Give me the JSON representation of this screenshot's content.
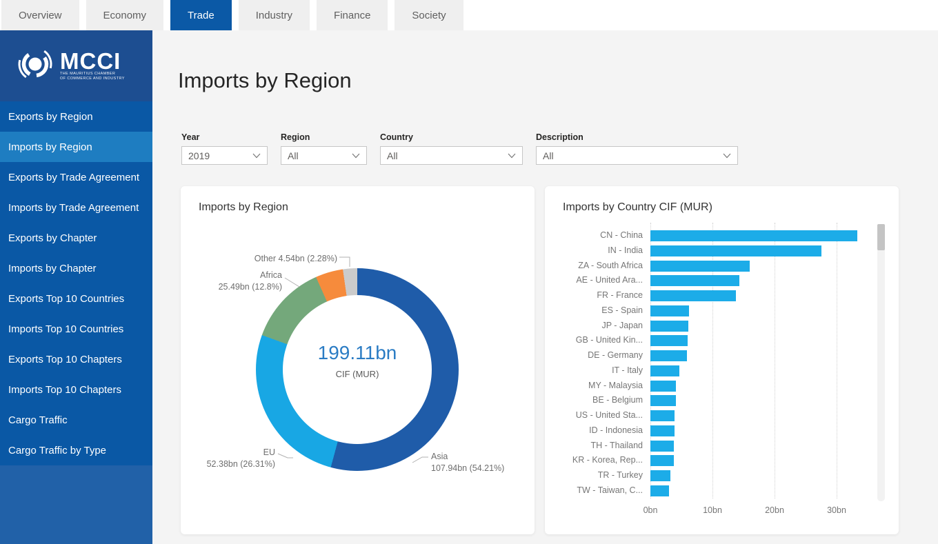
{
  "tabs": [
    {
      "label": "Overview",
      "active": false
    },
    {
      "label": "Economy",
      "active": false
    },
    {
      "label": "Trade",
      "active": true
    },
    {
      "label": "Industry",
      "active": false
    },
    {
      "label": "Finance",
      "active": false
    },
    {
      "label": "Society",
      "active": false
    }
  ],
  "sidebar": {
    "logo": {
      "title": "MCCI",
      "subtitle_line1": "THE MAURITIUS CHAMBER",
      "subtitle_line2": "OF COMMERCE AND INDUSTRY"
    },
    "items": [
      {
        "label": "Exports by Region",
        "active": false
      },
      {
        "label": "Imports by Region",
        "active": true
      },
      {
        "label": "Exports by Trade Agreement",
        "active": false
      },
      {
        "label": "Imports by Trade Agreement",
        "active": false
      },
      {
        "label": "Exports by Chapter",
        "active": false
      },
      {
        "label": "Imports by Chapter",
        "active": false
      },
      {
        "label": "Exports Top 10 Countries",
        "active": false
      },
      {
        "label": "Imports Top 10 Countries",
        "active": false
      },
      {
        "label": "Exports Top 10 Chapters",
        "active": false
      },
      {
        "label": "Imports Top 10 Chapters",
        "active": false
      },
      {
        "label": "Cargo Traffic",
        "active": false
      },
      {
        "label": "Cargo Traffic by Type",
        "active": false
      }
    ]
  },
  "page": {
    "title": "Imports by Region"
  },
  "filters": [
    {
      "label": "Year",
      "value": "2019"
    },
    {
      "label": "Region",
      "value": "All"
    },
    {
      "label": "Country",
      "value": "All"
    },
    {
      "label": "Description",
      "value": "All"
    }
  ],
  "chart_data": [
    {
      "type": "pie",
      "subtype": "donut",
      "title": "Imports by Region",
      "center_value": "199.11bn",
      "center_label": "CIF (MUR)",
      "total_bn": 199.11,
      "slices": [
        {
          "name": "Asia",
          "value_bn": 107.94,
          "pct": 54.21,
          "color": "#1F5CA9",
          "callout_lines": [
            "Asia",
            "107.94bn (54.21%)"
          ]
        },
        {
          "name": "EU",
          "value_bn": 52.38,
          "pct": 26.31,
          "color": "#18A7E4",
          "callout_lines": [
            "EU",
            "52.38bn (26.31%)"
          ]
        },
        {
          "name": "Africa",
          "value_bn": 25.49,
          "pct": 12.8,
          "color": "#74A87B",
          "callout_lines": [
            "Africa",
            "25.49bn (12.8%)"
          ]
        },
        {
          "name": "",
          "value_bn": 8.76,
          "pct": 4.4,
          "color": "#F68B3C",
          "callout_lines": []
        },
        {
          "name": "Other",
          "value_bn": 4.54,
          "pct": 2.28,
          "color": "#CBCBCB",
          "callout_lines": [
            "Other 4.54bn (2.28%)"
          ]
        }
      ],
      "legend": "none"
    },
    {
      "type": "bar",
      "orientation": "horizontal",
      "title": "Imports by Country CIF (MUR)",
      "categories": [
        "CN - China",
        "IN - India",
        "ZA - South Africa",
        "AE - United Ara...",
        "FR - France",
        "ES - Spain",
        "JP - Japan",
        "GB - United Kin...",
        "DE - Germany",
        "IT - Italy",
        "MY - Malaysia",
        "BE - Belgium",
        "US - United Sta...",
        "ID - Indonesia",
        "TH - Thailand",
        "KR - Korea, Rep...",
        "TR - Turkey",
        "TW - Taiwan, C..."
      ],
      "values_bn": [
        33.3,
        27.5,
        16.0,
        14.3,
        13.8,
        6.2,
        6.1,
        6.0,
        5.9,
        4.7,
        4.1,
        4.1,
        3.9,
        3.9,
        3.8,
        3.8,
        3.2,
        3.0
      ],
      "x_ticks": [
        "0bn",
        "10bn",
        "20bn",
        "30bn"
      ],
      "x_tick_values": [
        0,
        10,
        20,
        30
      ],
      "xlim": [
        0,
        35.8
      ],
      "grid": "dotted-vertical",
      "bar_color": "#1CACE8",
      "scrollbar": true
    }
  ],
  "colors": {
    "active_tab": "#0B59A6",
    "inactive_tab_bg": "#EFEFEF",
    "sidebar_bg": "#0A58A5",
    "sidebar_logo_bg": "#1D4E91",
    "sidebar_selected": "#1E7DC1",
    "sidebar_filler": "#2161A8",
    "content_bg": "#F4F4F4",
    "center_value_text": "#2B7CC4",
    "axis_text": "#767676"
  }
}
